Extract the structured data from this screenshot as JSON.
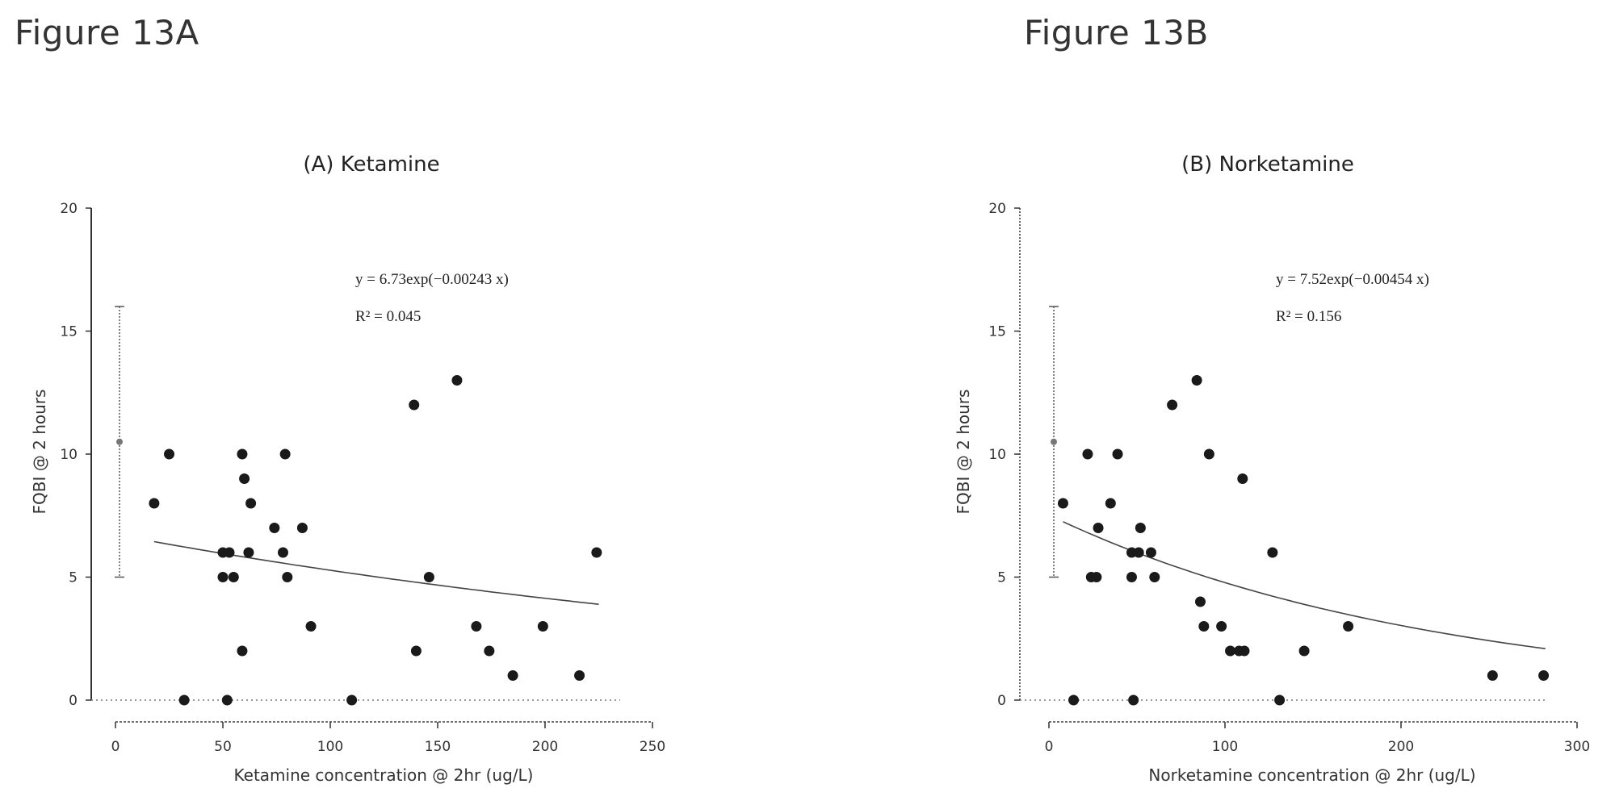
{
  "figure_a_caption": "Figure 13A",
  "figure_b_caption": "Figure 13B",
  "chart_data": [
    {
      "type": "scatter",
      "title": "(A) Ketamine",
      "xlabel": "Ketamine concentration @ 2hr (ug/L)",
      "ylabel": "FQBI @ 2 hours",
      "xlim": [
        0,
        250
      ],
      "ylim": [
        0,
        20
      ],
      "xticks": [
        0,
        50,
        100,
        150,
        200,
        250
      ],
      "yticks": [
        0,
        5,
        10,
        15,
        20
      ],
      "equation": "y = 6.73exp(−0.00243 x)",
      "r_squared": "R² = 0.045",
      "fit": {
        "a": 6.73,
        "b": -0.00243,
        "x_range": [
          18,
          225
        ]
      },
      "baseline_error_bar": {
        "mean": 10.5,
        "low": 5,
        "high": 16
      },
      "points": [
        {
          "x": 18,
          "y": 8
        },
        {
          "x": 25,
          "y": 10
        },
        {
          "x": 32,
          "y": 0
        },
        {
          "x": 50,
          "y": 6
        },
        {
          "x": 50,
          "y": 5
        },
        {
          "x": 52,
          "y": 0
        },
        {
          "x": 53,
          "y": 6
        },
        {
          "x": 55,
          "y": 5
        },
        {
          "x": 59,
          "y": 2
        },
        {
          "x": 59,
          "y": 10
        },
        {
          "x": 60,
          "y": 9
        },
        {
          "x": 62,
          "y": 6
        },
        {
          "x": 63,
          "y": 8
        },
        {
          "x": 74,
          "y": 7
        },
        {
          "x": 78,
          "y": 6
        },
        {
          "x": 79,
          "y": 10
        },
        {
          "x": 80,
          "y": 5
        },
        {
          "x": 87,
          "y": 7
        },
        {
          "x": 91,
          "y": 3
        },
        {
          "x": 110,
          "y": 0
        },
        {
          "x": 139,
          "y": 12
        },
        {
          "x": 140,
          "y": 2
        },
        {
          "x": 146,
          "y": 5
        },
        {
          "x": 159,
          "y": 13
        },
        {
          "x": 168,
          "y": 3
        },
        {
          "x": 174,
          "y": 2
        },
        {
          "x": 185,
          "y": 1
        },
        {
          "x": 199,
          "y": 3
        },
        {
          "x": 216,
          "y": 1
        },
        {
          "x": 224,
          "y": 6
        }
      ]
    },
    {
      "type": "scatter",
      "title": "(B) Norketamine",
      "xlabel": "Norketamine concentration @ 2hr (ug/L)",
      "ylabel": "FQBI @ 2 hours",
      "xlim": [
        0,
        300
      ],
      "ylim": [
        0,
        20
      ],
      "xticks": [
        0,
        100,
        200,
        300
      ],
      "yticks": [
        0,
        5,
        10,
        15,
        20
      ],
      "equation": "y = 7.52exp(−0.00454 x)",
      "r_squared": "R² = 0.156",
      "fit": {
        "a": 7.52,
        "b": -0.00454,
        "x_range": [
          8,
          282
        ]
      },
      "baseline_error_bar": {
        "mean": 10.5,
        "low": 5,
        "high": 16
      },
      "points": [
        {
          "x": 8,
          "y": 8
        },
        {
          "x": 14,
          "y": 0
        },
        {
          "x": 22,
          "y": 10
        },
        {
          "x": 24,
          "y": 5
        },
        {
          "x": 27,
          "y": 5
        },
        {
          "x": 28,
          "y": 7
        },
        {
          "x": 35,
          "y": 8
        },
        {
          "x": 39,
          "y": 10
        },
        {
          "x": 47,
          "y": 6
        },
        {
          "x": 47,
          "y": 5
        },
        {
          "x": 48,
          "y": 0
        },
        {
          "x": 51,
          "y": 6
        },
        {
          "x": 52,
          "y": 7
        },
        {
          "x": 58,
          "y": 6
        },
        {
          "x": 60,
          "y": 5
        },
        {
          "x": 70,
          "y": 12
        },
        {
          "x": 84,
          "y": 13
        },
        {
          "x": 86,
          "y": 4
        },
        {
          "x": 88,
          "y": 3
        },
        {
          "x": 91,
          "y": 10
        },
        {
          "x": 98,
          "y": 3
        },
        {
          "x": 103,
          "y": 2
        },
        {
          "x": 108,
          "y": 2
        },
        {
          "x": 110,
          "y": 9
        },
        {
          "x": 111,
          "y": 2
        },
        {
          "x": 127,
          "y": 6
        },
        {
          "x": 131,
          "y": 0
        },
        {
          "x": 145,
          "y": 2
        },
        {
          "x": 170,
          "y": 3
        },
        {
          "x": 252,
          "y": 1
        },
        {
          "x": 281,
          "y": 1
        }
      ]
    }
  ]
}
